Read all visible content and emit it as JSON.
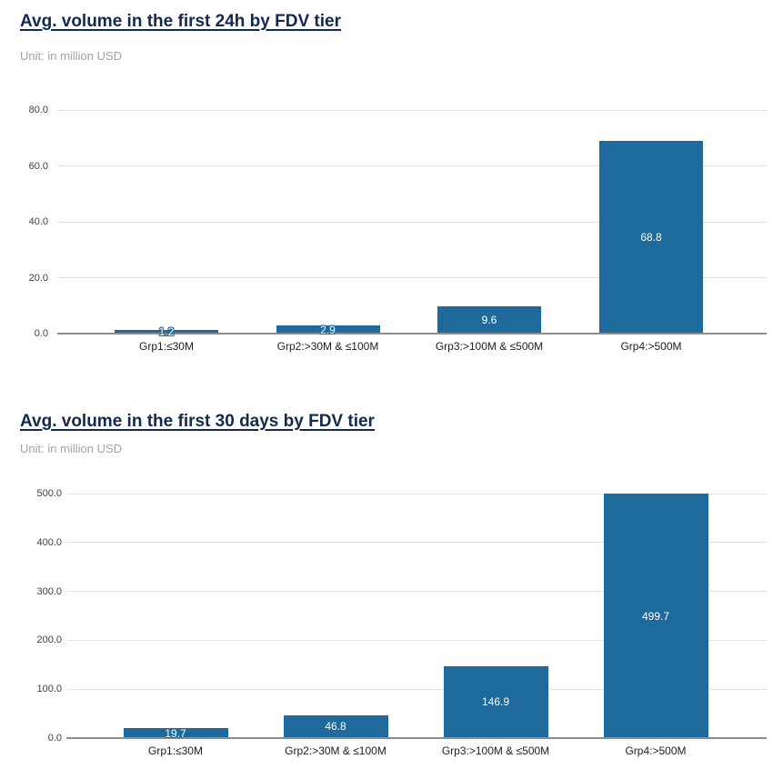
{
  "colors": {
    "bar": "#1f6a9c",
    "title": "#13294e",
    "subtitle": "#a0a3a9",
    "gridline": "#e2e2e2",
    "axis_baseline": "#8e8e8e",
    "tick_text": "#3f3f3f",
    "category_text": "#212121",
    "value_label_text": "#ffffff",
    "background": "#ffffff"
  },
  "chart_data": [
    {
      "type": "bar",
      "title": "Avg. volume in the first 24h by FDV tier",
      "subtitle": "Unit: in million USD",
      "categories": [
        "Grp1:≤30M",
        "Grp2:>30M & ≤100M",
        "Grp3:>100M & ≤500M",
        "Grp4:>500M"
      ],
      "values": [
        1.2,
        2.9,
        9.6,
        68.8
      ],
      "value_labels": [
        "1.2",
        "2.9",
        "9.6",
        "68.8"
      ],
      "xlabel": "",
      "ylabel": "",
      "ylim": [
        0,
        80
      ],
      "yticks": [
        0,
        20,
        40,
        60,
        80
      ],
      "ytick_labels": [
        "0.0",
        "20.0",
        "40.0",
        "60.0",
        "80.0"
      ],
      "grid": true,
      "legend": false
    },
    {
      "type": "bar",
      "title": "Avg. volume in the first 30 days by FDV tier",
      "subtitle": "Unit: in million USD",
      "categories": [
        "Grp1:≤30M",
        "Grp2:>30M & ≤100M",
        "Grp3:>100M & ≤500M",
        "Grp4:>500M"
      ],
      "values": [
        19.7,
        46.8,
        146.9,
        499.7
      ],
      "value_labels": [
        "19.7",
        "46.8",
        "146.9",
        "499.7"
      ],
      "xlabel": "",
      "ylabel": "",
      "ylim": [
        0,
        500
      ],
      "yticks": [
        0,
        100,
        200,
        300,
        400,
        500
      ],
      "ytick_labels": [
        "0.0",
        "100.0",
        "200.0",
        "300.0",
        "400.0",
        "500.0"
      ],
      "grid": true,
      "legend": false
    }
  ]
}
